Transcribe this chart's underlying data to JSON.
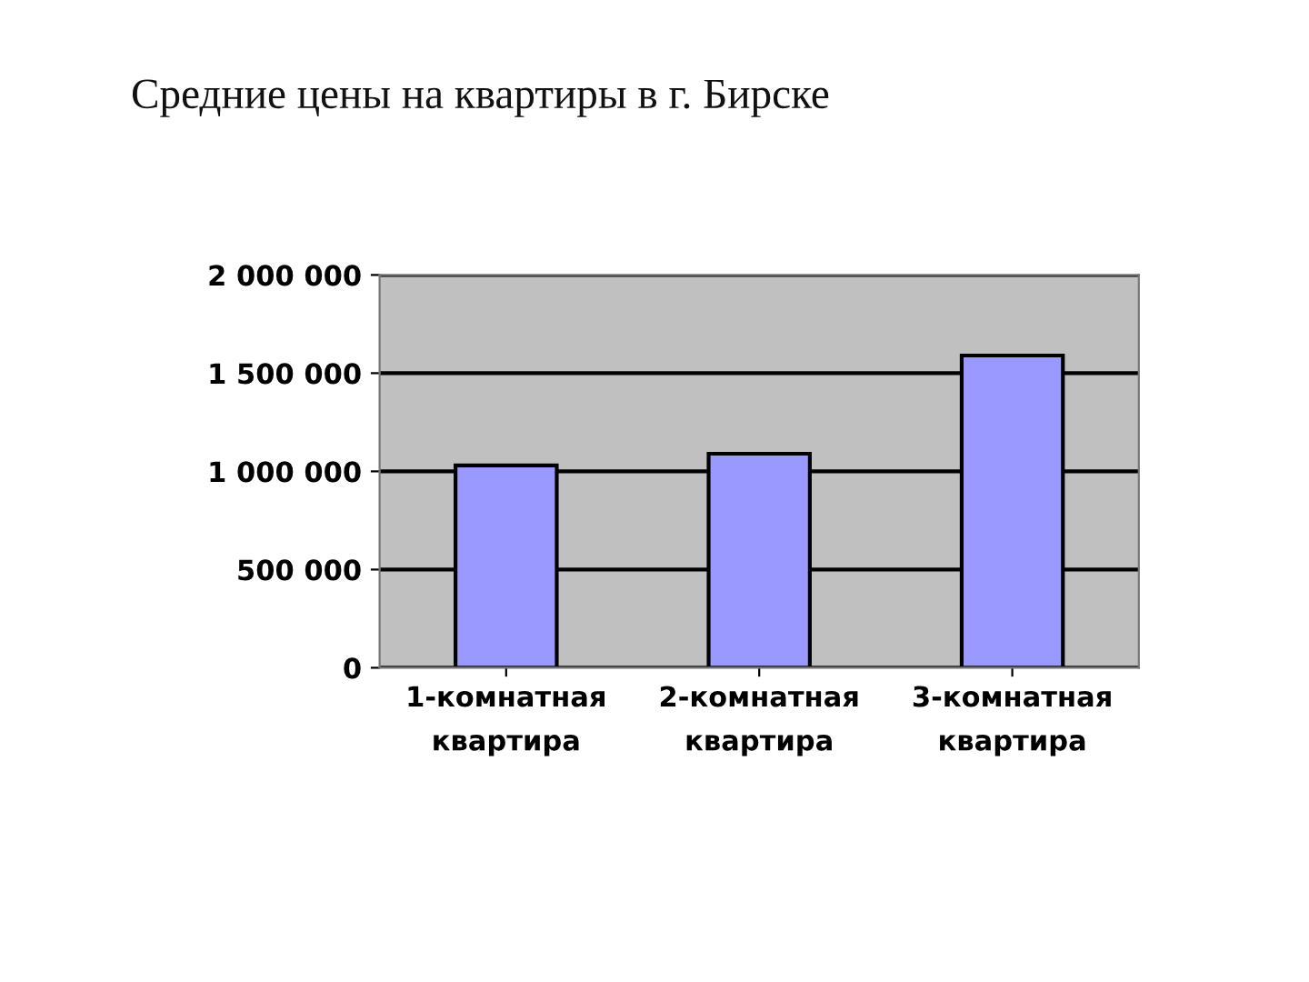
{
  "chart_data": {
    "type": "bar",
    "title": "Средние цены на квартиры в г. Бирске",
    "categories": [
      "1-комнатная\nквартира",
      "2-комнатная\nквартира",
      "3-комнатная\nквартира"
    ],
    "values": [
      1030000,
      1090000,
      1590000
    ],
    "color": "#9999ff",
    "ylim": [
      0,
      2000000
    ],
    "yticks": [
      0,
      {
        "value": 500000,
        "label": "500 000"
      },
      {
        "value": 1000000,
        "label": "1 000 000"
      },
      {
        "value": 1500000,
        "label": "1 500 000"
      },
      {
        "value": 2000000,
        "label": "2 000 000"
      }
    ],
    "grid": "y"
  }
}
